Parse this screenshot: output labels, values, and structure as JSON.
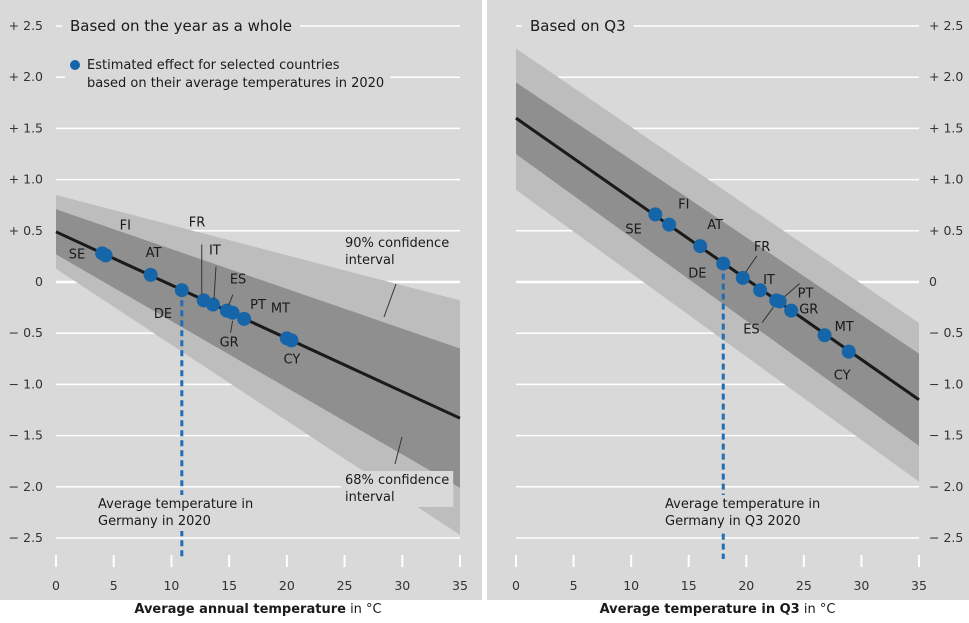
{
  "chart_data": [
    {
      "type": "line",
      "title": "Based on the year as a whole",
      "legend_text": [
        "Estimated effect for selected countries",
        "based on their average temperatures in 2020"
      ],
      "xlabel_bold": "Average annual temperature",
      "xlabel_rest": " in °C",
      "xlim": [
        0,
        35
      ],
      "ylim": [
        -2.5,
        2.5
      ],
      "x_ticks": [
        0,
        5,
        10,
        15,
        20,
        25,
        30,
        35
      ],
      "x_tick_labels": [
        "0",
        "5",
        "10",
        "15",
        "20",
        "25",
        "30",
        "35"
      ],
      "y_ticks": [
        2.5,
        2.0,
        1.5,
        1.0,
        0.5,
        0,
        -0.5,
        -1.0,
        -1.5,
        -2.0,
        -2.5
      ],
      "y_tick_labels": [
        "+ 2.5",
        "+ 2.0",
        "+ 1.5",
        "+ 1.0",
        "+ 0.5",
        "0",
        "− 0.5",
        "− 1.0",
        "− 1.5",
        "− 2.0",
        "− 2.5"
      ],
      "estimate_line": {
        "x": [
          0,
          35
        ],
        "y": [
          0.49,
          -1.33
        ]
      },
      "ci68": {
        "x": [
          0,
          35
        ],
        "upper": [
          0.71,
          -0.65
        ],
        "lower": [
          0.27,
          -2.01
        ]
      },
      "ci90": {
        "x": [
          0,
          35
        ],
        "upper": [
          0.85,
          -0.18
        ],
        "lower": [
          0.13,
          -2.47
        ]
      },
      "points": [
        {
          "label": "SE",
          "x": 4.0,
          "y": 0.28
        },
        {
          "label": "FI",
          "x": 4.3,
          "y": 0.26
        },
        {
          "label": "AT",
          "x": 8.2,
          "y": 0.07
        },
        {
          "label": "DE",
          "x": 10.9,
          "y": -0.08
        },
        {
          "label": "FR",
          "x": 12.8,
          "y": -0.18
        },
        {
          "label": "IT",
          "x": 13.6,
          "y": -0.22
        },
        {
          "label": "ES",
          "x": 14.8,
          "y": -0.28
        },
        {
          "label": "GR",
          "x": 15.3,
          "y": -0.3
        },
        {
          "label": "PT",
          "x": 16.3,
          "y": -0.36
        },
        {
          "label": "MT",
          "x": 20.0,
          "y": -0.55
        },
        {
          "label": "CY",
          "x": 20.4,
          "y": -0.57
        }
      ],
      "annotations": [
        {
          "lines": [
            "90% confidence",
            "interval"
          ]
        },
        {
          "lines": [
            "68% confidence",
            "interval"
          ]
        },
        {
          "lines": [
            "Average temperature in",
            "Germany in 2020"
          ]
        }
      ],
      "reference_x": 10.9
    },
    {
      "type": "line",
      "title": "Based on Q3",
      "xlabel_bold": "Average temperature in Q3",
      "xlabel_rest": " in °C",
      "xlim": [
        0,
        35
      ],
      "ylim": [
        -2.5,
        2.5
      ],
      "x_ticks": [
        0,
        5,
        10,
        15,
        20,
        25,
        30,
        35
      ],
      "x_tick_labels": [
        "0",
        "5",
        "10",
        "15",
        "20",
        "25",
        "30",
        "35"
      ],
      "y_ticks": [
        2.5,
        2.0,
        1.5,
        1.0,
        0.5,
        0,
        -0.5,
        -1.0,
        -1.5,
        -2.0,
        -2.5
      ],
      "y_tick_labels": [
        "+ 2.5",
        "+ 2.0",
        "+ 1.5",
        "+ 1.0",
        "+ 0.5",
        "0",
        "− 0.5",
        "− 1.0",
        "− 1.5",
        "− 2.0",
        "− 2.5"
      ],
      "estimate_line": {
        "x": [
          0,
          35
        ],
        "y": [
          1.6,
          -1.15
        ]
      },
      "ci68": {
        "x": [
          0,
          35
        ],
        "upper": [
          1.95,
          -0.7
        ],
        "lower": [
          1.25,
          -1.6
        ]
      },
      "ci90": {
        "x": [
          0,
          35
        ],
        "upper": [
          2.28,
          -0.4
        ],
        "lower": [
          0.9,
          -1.95
        ]
      },
      "points": [
        {
          "label": "SE",
          "x": 12.1,
          "y": 0.66
        },
        {
          "label": "FI",
          "x": 13.3,
          "y": 0.56
        },
        {
          "label": "AT",
          "x": 16.0,
          "y": 0.35
        },
        {
          "label": "DE",
          "x": 18.0,
          "y": 0.18
        },
        {
          "label": "FR",
          "x": 19.7,
          "y": 0.04
        },
        {
          "label": "IT",
          "x": 21.2,
          "y": -0.08
        },
        {
          "label": "ES",
          "x": 22.6,
          "y": -0.18
        },
        {
          "label": "PT",
          "x": 22.9,
          "y": -0.19
        },
        {
          "label": "GR",
          "x": 23.9,
          "y": -0.28
        },
        {
          "label": "MT",
          "x": 26.8,
          "y": -0.52
        },
        {
          "label": "CY",
          "x": 28.9,
          "y": -0.68
        }
      ],
      "annotations": [
        {
          "lines": [
            "Average temperature in",
            "Germany in Q3 2020"
          ]
        }
      ],
      "reference_x": 18.0
    }
  ],
  "colors": {
    "background": "#d9d9d9",
    "ci90": "#bdbdbd",
    "ci68": "#8f8f8f",
    "line": "#1a1a1a",
    "point": "#1565a8",
    "reference": "#1f6db5",
    "gridline": "#ffffff"
  }
}
